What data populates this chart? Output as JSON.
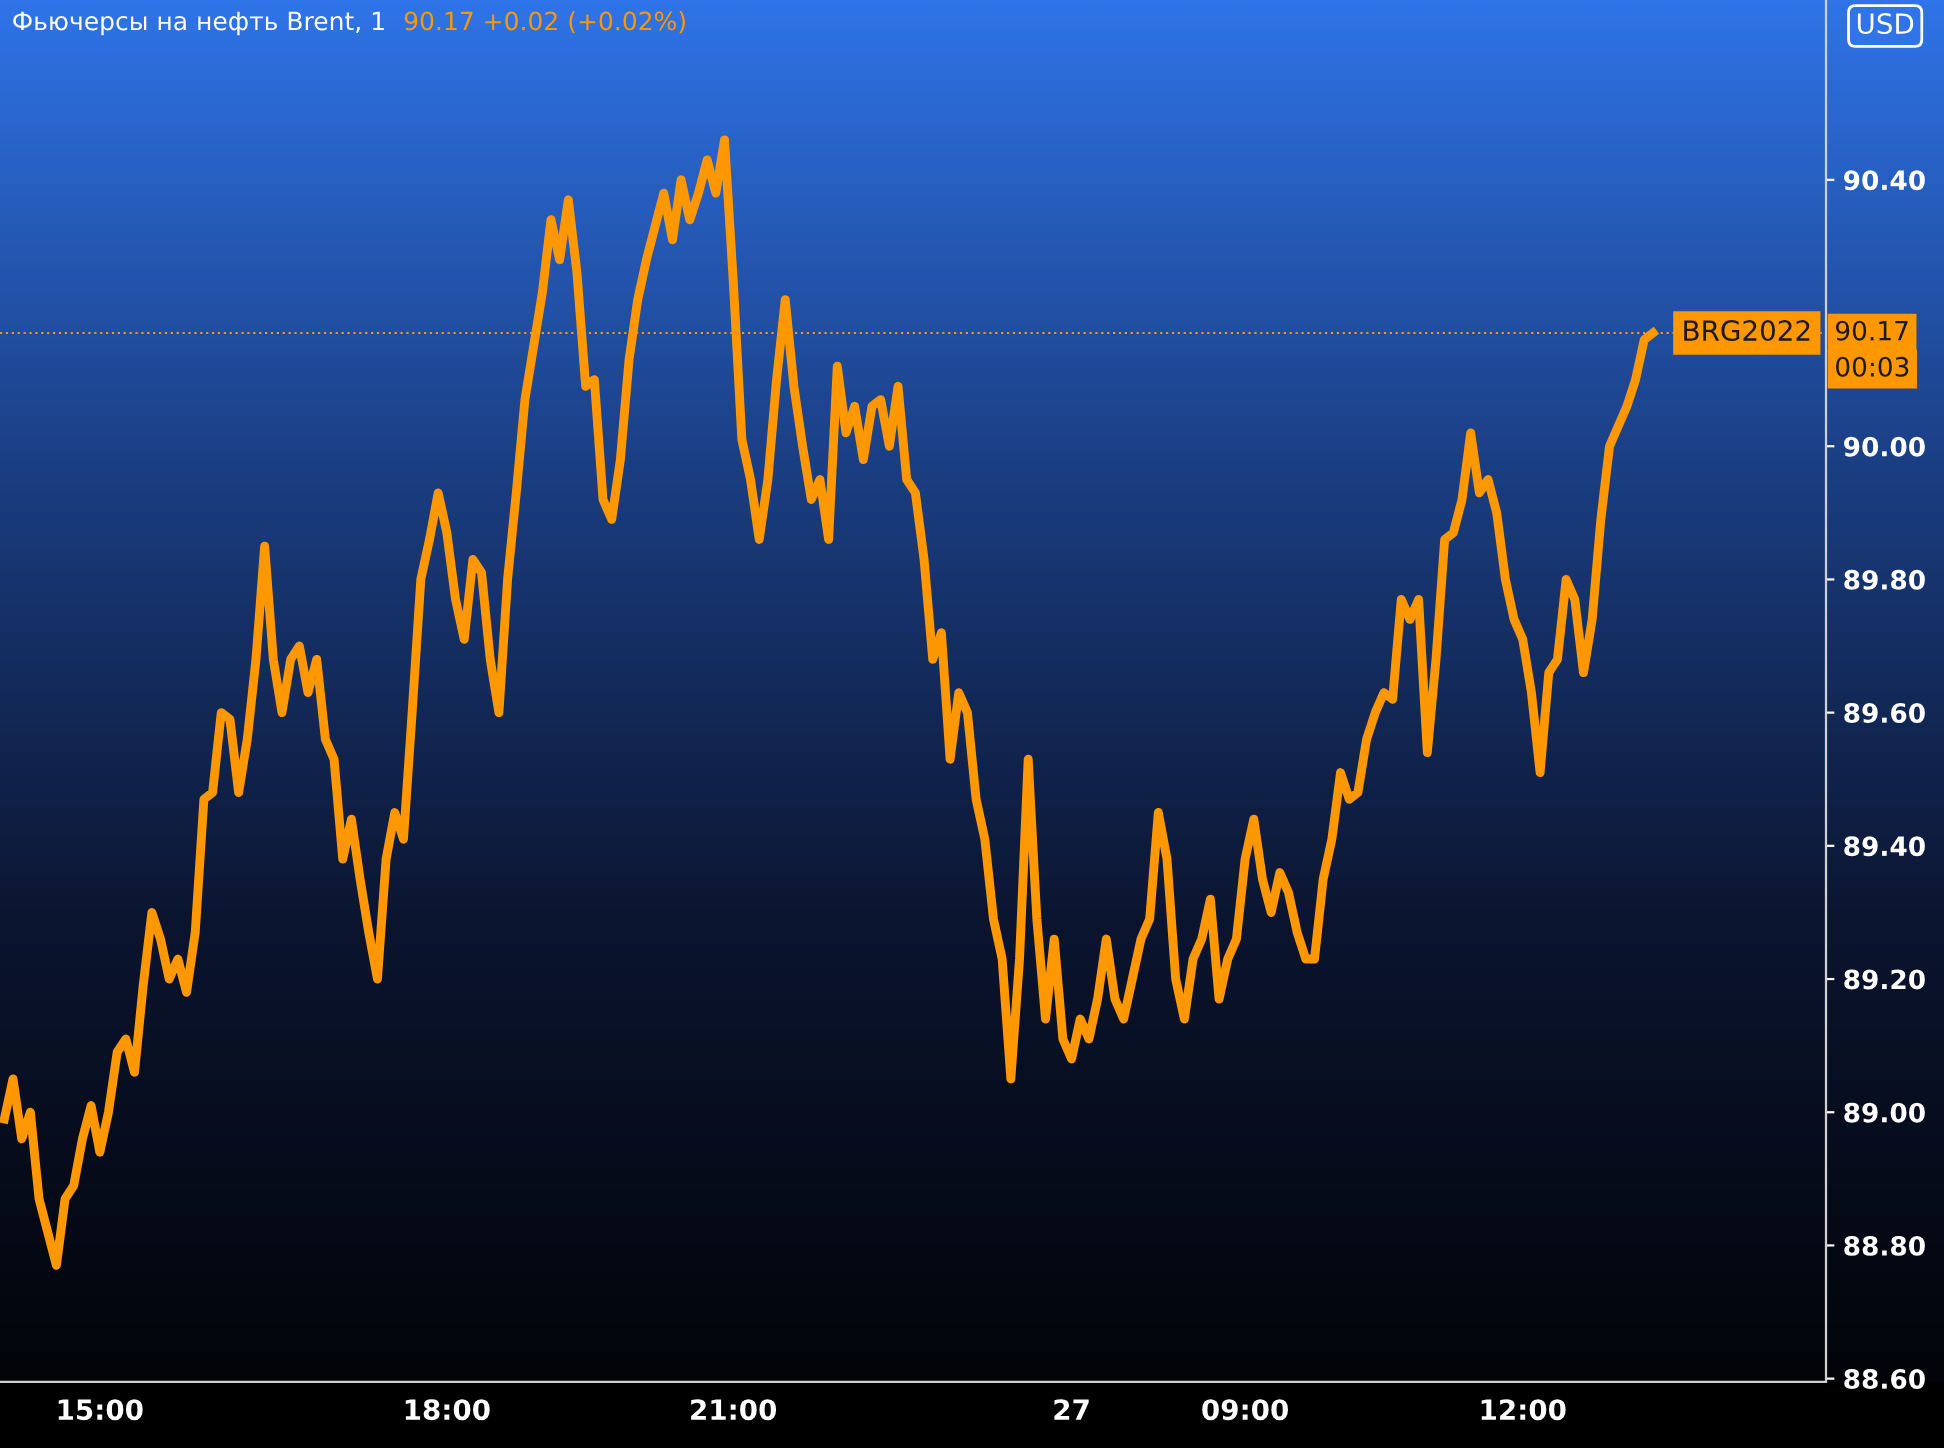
{
  "chart_data": {
    "type": "line",
    "title": "Фьючерсы на нефть Brent, 1",
    "subtitle": "90.17 +0.02 (+0.02%)",
    "categories": [
      null,
      null,
      null,
      null,
      null,
      null,
      null,
      null,
      null,
      null,
      null,
      "15:00",
      null,
      null,
      null,
      null,
      null,
      null,
      null,
      null,
      null,
      null,
      null,
      null,
      null,
      null,
      null,
      null,
      null,
      null,
      null,
      null,
      null,
      null,
      null,
      null,
      null,
      null,
      null,
      null,
      null,
      null,
      null,
      null,
      null,
      null,
      null,
      null,
      null,
      null,
      null,
      "18:00",
      null,
      null,
      null,
      null,
      null,
      null,
      null,
      null,
      null,
      null,
      null,
      null,
      null,
      null,
      null,
      null,
      null,
      null,
      null,
      null,
      null,
      null,
      null,
      null,
      null,
      null,
      null,
      null,
      null,
      null,
      null,
      null,
      "21:00",
      null,
      null,
      null,
      null,
      null,
      null,
      null,
      null,
      null,
      null,
      null,
      null,
      null,
      null,
      null,
      null,
      null,
      null,
      null,
      null,
      null,
      null,
      null,
      null,
      null,
      null,
      null,
      null,
      null,
      null,
      null,
      null,
      null,
      null,
      null,
      null,
      null,
      null,
      "27",
      null,
      null,
      null,
      null,
      null,
      null,
      null,
      null,
      null,
      null,
      null,
      null,
      null,
      null,
      null,
      null,
      null,
      null,
      null,
      "09:00",
      null,
      null,
      null,
      null,
      null,
      null,
      null,
      null,
      null,
      null,
      null,
      null,
      null,
      null,
      null,
      null,
      null,
      null,
      null,
      null,
      null,
      null,
      null,
      null,
      null,
      null,
      null,
      null,
      null,
      null,
      null,
      "12:00",
      null,
      null,
      null,
      null,
      null,
      null,
      null,
      null,
      null,
      null,
      null,
      null,
      null,
      null,
      null
    ],
    "series": [
      {
        "color": "#ff9800",
        "values": [
          88.99,
          89.05,
          88.96,
          89.0,
          88.87,
          88.82,
          88.77,
          88.87,
          88.89,
          88.96,
          89.01,
          88.94,
          89.0,
          89.09,
          89.11,
          89.06,
          89.19,
          89.3,
          89.26,
          89.2,
          89.23,
          89.18,
          89.27,
          89.47,
          89.48,
          89.6,
          89.59,
          89.48,
          89.56,
          89.68,
          89.85,
          89.68,
          89.6,
          89.68,
          89.7,
          89.63,
          89.68,
          89.56,
          89.53,
          89.38,
          89.44,
          89.35,
          89.27,
          89.2,
          89.38,
          89.45,
          89.41,
          89.6,
          89.8,
          89.86,
          89.93,
          89.87,
          89.77,
          89.71,
          89.83,
          89.81,
          89.68,
          89.6,
          89.8,
          89.93,
          90.07,
          90.15,
          90.23,
          90.34,
          90.28,
          90.37,
          90.26,
          90.09,
          90.1,
          89.92,
          89.89,
          89.98,
          90.13,
          90.22,
          90.28,
          90.33,
          90.38,
          90.31,
          90.4,
          90.34,
          90.38,
          90.43,
          90.38,
          90.46,
          90.25,
          90.01,
          89.95,
          89.86,
          89.95,
          90.1,
          90.22,
          90.09,
          90.0,
          89.92,
          89.95,
          89.86,
          90.12,
          90.02,
          90.06,
          89.98,
          90.06,
          90.07,
          90.0,
          90.09,
          89.95,
          89.93,
          89.83,
          89.68,
          89.72,
          89.53,
          89.63,
          89.6,
          89.47,
          89.41,
          89.29,
          89.23,
          89.05,
          89.23,
          89.53,
          89.29,
          89.14,
          89.26,
          89.11,
          89.08,
          89.14,
          89.11,
          89.17,
          89.26,
          89.17,
          89.14,
          89.2,
          89.26,
          89.29,
          89.45,
          89.38,
          89.2,
          89.14,
          89.23,
          89.26,
          89.32,
          89.17,
          89.23,
          89.26,
          89.38,
          89.44,
          89.35,
          89.3,
          89.36,
          89.33,
          89.27,
          89.23,
          89.23,
          89.35,
          89.41,
          89.51,
          89.47,
          89.48,
          89.56,
          89.6,
          89.63,
          89.62,
          89.77,
          89.74,
          89.77,
          89.54,
          89.68,
          89.86,
          89.87,
          89.92,
          90.02,
          89.93,
          89.95,
          89.9,
          89.8,
          89.74,
          89.71,
          89.63,
          89.51,
          89.66,
          89.68,
          89.8,
          89.77,
          89.66,
          89.74,
          89.89,
          90.0,
          90.03,
          90.06,
          90.1,
          90.16,
          90.17
        ]
      }
    ],
    "ylim": [
      88.595,
      90.67
    ],
    "yticks": [
      {
        "value": 88.6,
        "label": "88.60"
      },
      {
        "value": 88.8,
        "label": "88.80"
      },
      {
        "value": 89.0,
        "label": "89.00"
      },
      {
        "value": 89.2,
        "label": "89.20"
      },
      {
        "value": 89.4,
        "label": "89.40"
      },
      {
        "value": 89.6,
        "label": "89.60"
      },
      {
        "value": 89.8,
        "label": "89.80"
      },
      {
        "value": 90.0,
        "label": "90.00"
      },
      {
        "value": 90.4,
        "label": "90.40"
      }
    ],
    "ref_lines": [
      {
        "axis": "y",
        "value": 90.17,
        "label": "90.17",
        "color": "#ff9800",
        "line_style": "dotted"
      }
    ],
    "annotations": [
      "BRG2022",
      "00:03",
      "USD"
    ],
    "grid": false,
    "legend": false,
    "marker": "none",
    "line_style": "solid"
  }
}
